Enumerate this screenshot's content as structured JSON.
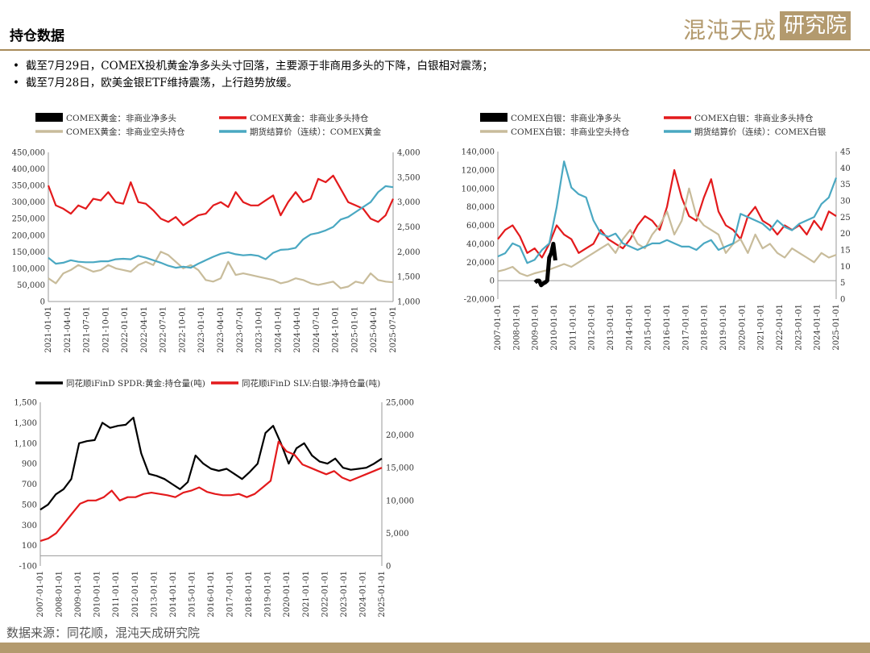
{
  "header": {
    "title": "持仓数据"
  },
  "logo": {
    "text_left": "混沌天成",
    "text_boxed": "研究院"
  },
  "bullets": [
    "截至7月29日，COMEX投机黄金净多头头寸回落，主要源于非商用多头的下降，白银相对震荡；",
    "截至7月28日，欧美金银ETF维持震荡，上行趋势放缓。"
  ],
  "footer": {
    "source": "数据来源：同花顺，混沌天成研究院"
  },
  "colors": {
    "black": "#000000",
    "red": "#e31a1c",
    "beige": "#c8bc9b",
    "teal": "#4aa8c2",
    "accent": "#b39a6e"
  },
  "chart_data": [
    {
      "type": "line",
      "legend": [
        {
          "label": "COMEX黄金：非商业净多头",
          "color": "#000000",
          "style": "bar"
        },
        {
          "label": "COMEX黄金：非商业多头持仓",
          "color": "#e31a1c",
          "style": "line"
        },
        {
          "label": "COMEX黄金：非商业空头持仓",
          "color": "#c8bc9b",
          "style": "line"
        },
        {
          "label": "期货结算价（连续）：COMEX黄金",
          "color": "#4aa8c2",
          "style": "line"
        }
      ],
      "xlabels": [
        "2021-01-01",
        "2021-04-01",
        "2021-07-01",
        "2021-10-01",
        "2022-01-01",
        "2022-04-01",
        "2022-07-01",
        "2022-10-01",
        "2023-01-01",
        "2023-04-01",
        "2023-07-01",
        "2023-10-01",
        "2024-01-01",
        "2024-04-01",
        "2024-07-01",
        "2024-10-01",
        "2025-01-01",
        "2025-04-01",
        "2025-07-01"
      ],
      "ylim_left": [
        0,
        450000
      ],
      "yticks_left": [
        "0",
        "50,000",
        "100,000",
        "150,000",
        "200,000",
        "250,000",
        "300,000",
        "350,000",
        "400,000",
        "450,000"
      ],
      "ylim_right": [
        1000,
        4000
      ],
      "yticks_right": [
        "1,000",
        "1,500",
        "2,000",
        "2,500",
        "3,000",
        "3,500",
        "4,000"
      ],
      "series": [
        {
          "axis": "left",
          "color": "#e31a1c",
          "values": [
            350000,
            290000,
            280000,
            265000,
            290000,
            280000,
            310000,
            305000,
            330000,
            300000,
            295000,
            360000,
            300000,
            295000,
            275000,
            250000,
            240000,
            255000,
            230000,
            245000,
            260000,
            265000,
            290000,
            300000,
            285000,
            330000,
            300000,
            290000,
            290000,
            305000,
            320000,
            260000,
            300000,
            330000,
            300000,
            310000,
            370000,
            360000,
            380000,
            340000,
            300000,
            290000,
            280000,
            250000,
            240000,
            260000,
            310000
          ]
        },
        {
          "axis": "left",
          "color": "#c8bc9b",
          "values": [
            70000,
            55000,
            85000,
            95000,
            110000,
            100000,
            90000,
            95000,
            110000,
            100000,
            95000,
            90000,
            110000,
            120000,
            110000,
            150000,
            140000,
            120000,
            100000,
            110000,
            95000,
            65000,
            60000,
            70000,
            120000,
            80000,
            85000,
            80000,
            75000,
            70000,
            65000,
            55000,
            60000,
            70000,
            65000,
            55000,
            50000,
            55000,
            60000,
            40000,
            45000,
            60000,
            55000,
            85000,
            65000,
            60000,
            58000
          ]
        },
        {
          "axis": "right",
          "color": "#4aa8c2",
          "values": [
            1880,
            1760,
            1780,
            1830,
            1800,
            1790,
            1790,
            1810,
            1810,
            1850,
            1860,
            1850,
            1920,
            1880,
            1830,
            1780,
            1720,
            1680,
            1700,
            1680,
            1760,
            1830,
            1900,
            1960,
            1990,
            1950,
            1930,
            1940,
            1920,
            1850,
            1980,
            2040,
            2050,
            2080,
            2250,
            2350,
            2380,
            2430,
            2500,
            2650,
            2700,
            2800,
            2900,
            3000,
            3200,
            3320,
            3300
          ]
        }
      ]
    },
    {
      "type": "line",
      "legend": [
        {
          "label": "COMEX白银：非商业净多头",
          "color": "#000000",
          "style": "bar"
        },
        {
          "label": "COMEX白银：非商业多头持仓",
          "color": "#e31a1c",
          "style": "line"
        },
        {
          "label": "COMEX白银：非商业空头持仓",
          "color": "#c8bc9b",
          "style": "line"
        },
        {
          "label": "期货结算价（连续）：COMEX白银",
          "color": "#4aa8c2",
          "style": "line"
        }
      ],
      "xlabels": [
        "2007-01-01",
        "2008-01-01",
        "2009-01-01",
        "2010-01-01",
        "2011-01-01",
        "2012-01-01",
        "2013-01-01",
        "2014-01-01",
        "2015-01-01",
        "2016-01-01",
        "2017-01-01",
        "2018-01-01",
        "2019-01-01",
        "2020-01-01",
        "2021-01-01",
        "2022-01-01",
        "2023-01-01",
        "2024-01-01",
        "2025-01-01"
      ],
      "ylim_left": [
        -20000,
        140000
      ],
      "yticks_left": [
        "-20,000",
        "0",
        "20,000",
        "40,000",
        "60,000",
        "80,000",
        "100,000",
        "120,000",
        "140,000"
      ],
      "ylim_right": [
        0,
        45
      ],
      "yticks_right": [
        "0",
        "5",
        "10",
        "15",
        "20",
        "25",
        "30",
        "35",
        "40",
        "45"
      ],
      "series": [
        {
          "axis": "left",
          "color": "#e31a1c",
          "values": [
            45000,
            55000,
            60000,
            48000,
            30000,
            35000,
            25000,
            40000,
            60000,
            50000,
            45000,
            30000,
            35000,
            40000,
            55000,
            45000,
            40000,
            35000,
            45000,
            60000,
            70000,
            65000,
            55000,
            80000,
            120000,
            90000,
            70000,
            65000,
            90000,
            110000,
            75000,
            60000,
            55000,
            45000,
            70000,
            80000,
            65000,
            60000,
            50000,
            60000,
            55000,
            60000,
            50000,
            65000,
            55000,
            75000,
            70000
          ]
        },
        {
          "axis": "left",
          "color": "#c8bc9b",
          "values": [
            10000,
            12000,
            15000,
            8000,
            5000,
            8000,
            10000,
            12000,
            15000,
            18000,
            15000,
            20000,
            25000,
            30000,
            35000,
            40000,
            30000,
            45000,
            55000,
            40000,
            35000,
            50000,
            60000,
            75000,
            50000,
            65000,
            100000,
            70000,
            60000,
            55000,
            50000,
            30000,
            40000,
            45000,
            30000,
            50000,
            35000,
            40000,
            30000,
            25000,
            35000,
            30000,
            25000,
            20000,
            30000,
            25000,
            28000
          ]
        },
        {
          "axis": "right",
          "color": "#4aa8c2",
          "values": [
            13,
            14,
            17,
            16,
            11,
            12,
            15,
            17,
            28,
            42,
            34,
            32,
            31,
            24,
            20,
            19,
            20,
            17,
            16,
            15,
            16,
            17,
            17,
            18,
            17,
            16,
            16,
            15,
            17,
            18,
            15,
            16,
            17,
            26,
            25,
            24,
            23,
            21,
            24,
            22,
            21,
            23,
            24,
            25,
            29,
            31,
            37
          ]
        },
        {
          "axis": "left",
          "color": "#000000",
          "values": [
            -2000,
            0,
            0,
            -5000,
            -3000,
            -2000,
            0,
            25000,
            30000,
            40000,
            22000
          ]
        }
      ]
    },
    {
      "type": "line",
      "legend": [
        {
          "label": "同花顺iFinD SPDR:黄金:持仓量(吨)",
          "color": "#000000",
          "style": "line"
        },
        {
          "label": "同花顺iFinD SLV:白银:净持仓量(吨)",
          "color": "#e31a1c",
          "style": "line"
        }
      ],
      "xlabels": [
        "2007-01-01",
        "2008-01-01",
        "2009-01-01",
        "2010-01-01",
        "2011-01-01",
        "2012-01-01",
        "2013-01-01",
        "2014-01-01",
        "2015-01-01",
        "2016-01-01",
        "2017-01-01",
        "2018-01-01",
        "2019-01-01",
        "2020-01-01",
        "2021-01-01",
        "2022-01-01",
        "2023-01-01",
        "2024-01-01",
        "2025-01-01"
      ],
      "ylim_left": [
        -100,
        1500
      ],
      "yticks_left": [
        "-100",
        "100",
        "300",
        "500",
        "700",
        "900",
        "1,100",
        "1,300",
        "1,500"
      ],
      "ylim_right": [
        0,
        25000
      ],
      "yticks_right": [
        "0",
        "5,000",
        "10,000",
        "15,000",
        "20,000",
        "25,000"
      ],
      "series": [
        {
          "axis": "left",
          "color": "#000000",
          "values": [
            450,
            500,
            600,
            650,
            750,
            1100,
            1120,
            1130,
            1300,
            1250,
            1270,
            1280,
            1350,
            1000,
            800,
            780,
            750,
            700,
            650,
            720,
            980,
            900,
            850,
            830,
            850,
            800,
            750,
            820,
            900,
            1200,
            1270,
            1100,
            900,
            1050,
            1100,
            980,
            920,
            900,
            950,
            860,
            840,
            850,
            860,
            900,
            950
          ]
        },
        {
          "axis": "right",
          "color": "#e31a1c",
          "values": [
            3800,
            4200,
            5000,
            6500,
            8000,
            9500,
            10000,
            10000,
            10500,
            11500,
            10000,
            10500,
            10500,
            11000,
            11200,
            11000,
            10800,
            10500,
            11200,
            11500,
            12000,
            11300,
            11000,
            10800,
            10800,
            11000,
            10500,
            11000,
            12000,
            13000,
            19000,
            17500,
            17000,
            15500,
            15000,
            14500,
            14000,
            14500,
            13500,
            13000,
            13500,
            14000,
            14500,
            15000
          ]
        }
      ]
    }
  ]
}
